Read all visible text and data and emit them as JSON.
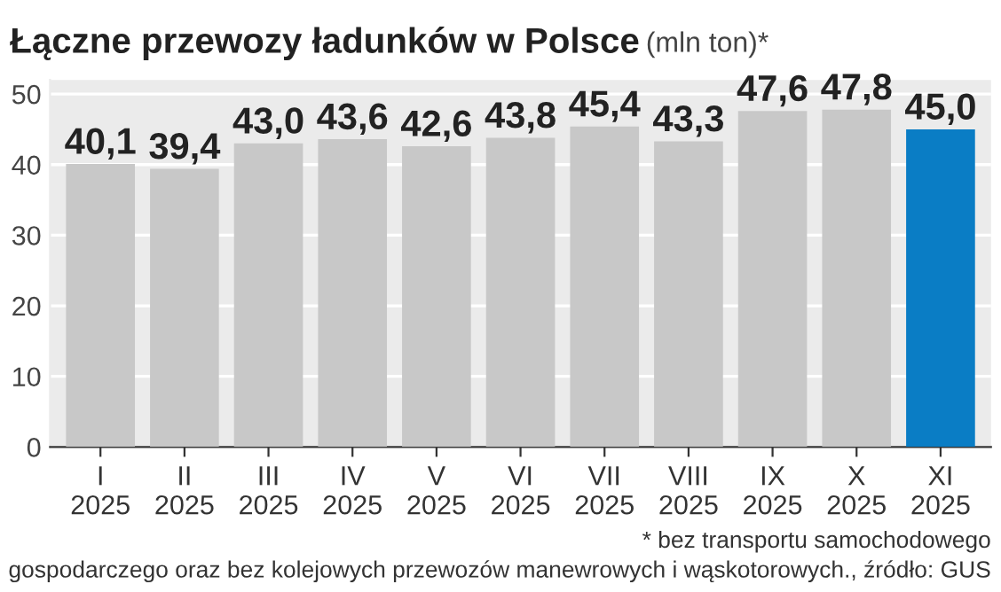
{
  "chart_data": {
    "type": "bar",
    "title": "Łączne przewozy ładunków w Polsce",
    "subtitle": "(mln ton)*",
    "categories": [
      "I\n2025",
      "II\n2025",
      "III\n2025",
      "IV\n2025",
      "V\n2025",
      "VI\n2025",
      "VII\n2025",
      "VIII\n2025",
      "IX\n2025",
      "X\n2025",
      "XI\n2025"
    ],
    "values": [
      40.1,
      39.4,
      43.0,
      43.6,
      42.6,
      43.8,
      45.4,
      43.3,
      47.6,
      47.8,
      45.0
    ],
    "colors": [
      "#c8c8c8",
      "#c8c8c8",
      "#c8c8c8",
      "#c8c8c8",
      "#c8c8c8",
      "#c8c8c8",
      "#c8c8c8",
      "#c8c8c8",
      "#c8c8c8",
      "#c8c8c8",
      "#0a7dc5"
    ],
    "value_labels": [
      "40,1",
      "39,4",
      "43,0",
      "43,6",
      "42,6",
      "43,8",
      "45,4",
      "43,3",
      "47,6",
      "47,8",
      "45,0"
    ],
    "ylim": [
      0,
      52
    ],
    "yticks": [
      0,
      10,
      20,
      30,
      40,
      50
    ],
    "grid": "y",
    "annotations": [
      "* bez transportu samochodowego",
      "gospodarczego oraz bez kolejowych przewozów manewrowych i wąskotorowych., źródło: GUS"
    ]
  }
}
